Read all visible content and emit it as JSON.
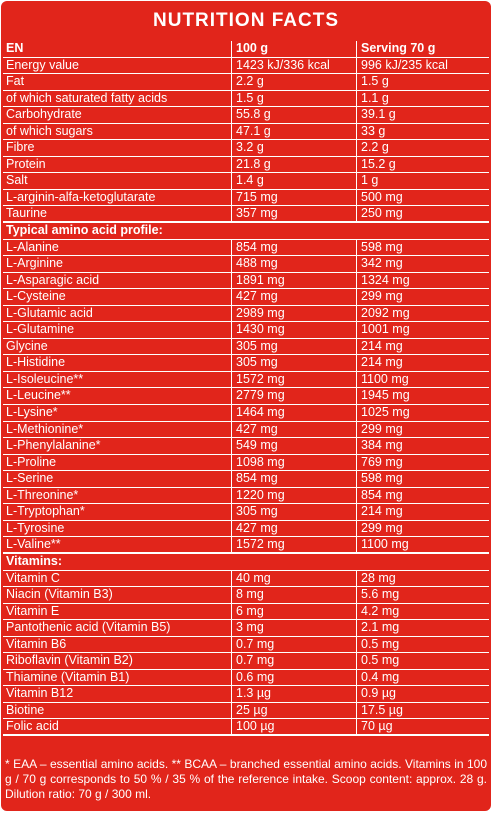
{
  "title": "NUTRITION FACTS",
  "header": {
    "name": "EN",
    "per100": "100 g",
    "serving": "Serving 70 g"
  },
  "nutrients": [
    {
      "name": "Energy value",
      "per100": "1423 kJ/336 kcal",
      "serving": "996 kJ/235 kcal"
    },
    {
      "name": "Fat",
      "per100": "2.2 g",
      "serving": "1.5 g"
    },
    {
      "name": " of which saturated fatty acids",
      "per100": "1.5 g",
      "serving": "1.1 g"
    },
    {
      "name": "Carbohydrate",
      "per100": "55.8 g",
      "serving": "39.1 g"
    },
    {
      "name": " of which sugars",
      "per100": "47.1 g",
      "serving": "33 g"
    },
    {
      "name": "Fibre",
      "per100": "3.2 g",
      "serving": "2.2 g"
    },
    {
      "name": "Protein",
      "per100": "21.8 g",
      "serving": "15.2 g"
    },
    {
      "name": "Salt",
      "per100": "1.4 g",
      "serving": "1 g"
    },
    {
      "name": "L-arginin-alfa-ketoglutarate",
      "per100": "715 mg",
      "serving": "500 mg"
    },
    {
      "name": "Taurine",
      "per100": "357 mg",
      "serving": "250 mg"
    }
  ],
  "amino_heading": "Typical amino acid profile:",
  "amino_acids": [
    {
      "name": "L-Alanine",
      "per100": "854 mg",
      "serving": "598 mg"
    },
    {
      "name": "L-Arginine",
      "per100": "488 mg",
      "serving": "342 mg"
    },
    {
      "name": "L-Asparagic acid",
      "per100": "1891 mg",
      "serving": "1324 mg"
    },
    {
      "name": "L-Cysteine",
      "per100": "427 mg",
      "serving": "299 mg"
    },
    {
      "name": "L-Glutamic acid",
      "per100": "2989 mg",
      "serving": "2092 mg"
    },
    {
      "name": "L-Glutamine",
      "per100": "1430 mg",
      "serving": "1001 mg"
    },
    {
      "name": "Glycine",
      "per100": "305 mg",
      "serving": "214 mg"
    },
    {
      "name": "L-Histidine",
      "per100": "305 mg",
      "serving": "214 mg"
    },
    {
      "name": "L-Isoleucine**",
      "per100": "1572 mg",
      "serving": "1100 mg"
    },
    {
      "name": "L-Leucine**",
      "per100": "2779 mg",
      "serving": "1945 mg"
    },
    {
      "name": "L-Lysine*",
      "per100": "1464 mg",
      "serving": "1025 mg"
    },
    {
      "name": "L-Methionine*",
      "per100": "427 mg",
      "serving": "299 mg"
    },
    {
      "name": "L-Phenylalanine*",
      "per100": "549 mg",
      "serving": "384 mg"
    },
    {
      "name": "L-Proline",
      "per100": "1098 mg",
      "serving": "769 mg"
    },
    {
      "name": "L-Serine",
      "per100": "854 mg",
      "serving": "598 mg"
    },
    {
      "name": "L-Threonine*",
      "per100": "1220 mg",
      "serving": "854 mg"
    },
    {
      "name": "L-Tryptophan*",
      "per100": "305 mg",
      "serving": "214 mg"
    },
    {
      "name": "L-Tyrosine",
      "per100": "427 mg",
      "serving": "299 mg"
    },
    {
      "name": "L-Valine**",
      "per100": "1572 mg",
      "serving": "1100 mg"
    }
  ],
  "vitamins_heading": "Vitamins:",
  "vitamins": [
    {
      "name": "Vitamin C",
      "per100": "40 mg",
      "serving": "28 mg"
    },
    {
      "name": "Niacin (Vitamin B3)",
      "per100": "8 mg",
      "serving": "5.6 mg"
    },
    {
      "name": "Vitamin E",
      "per100": "6 mg",
      "serving": "4.2 mg"
    },
    {
      "name": "Pantothenic acid (Vitamin B5)",
      "per100": "3 mg",
      "serving": "2.1 mg"
    },
    {
      "name": "Vitamin B6",
      "per100": "0.7 mg",
      "serving": "0.5 mg"
    },
    {
      "name": "Riboflavin (Vitamin B2)",
      "per100": "0.7 mg",
      "serving": "0.5 mg"
    },
    {
      "name": "Thiamine (Vitamin B1)",
      "per100": "0.6 mg",
      "serving": "0.4 mg"
    },
    {
      "name": "Vitamin B12",
      "per100": "1.3 µg",
      "serving": "0.9 µg"
    },
    {
      "name": "Biotine",
      "per100": "25 µg",
      "serving": "17.5 µg"
    },
    {
      "name": "Folic acid",
      "per100": "100 µg",
      "serving": "70 µg"
    }
  ],
  "footnote": "* EAA – essential amino acids. ** BCAA – branched essential amino acids. Vitamins in 100 g / 70 g corresponds to 50 % / 35 % of the reference intake. Scoop content: approx. 28 g. Dilution ratio: 70 g / 300 ml.",
  "colors": {
    "panel": "#e1251b",
    "text": "#ffffff"
  }
}
